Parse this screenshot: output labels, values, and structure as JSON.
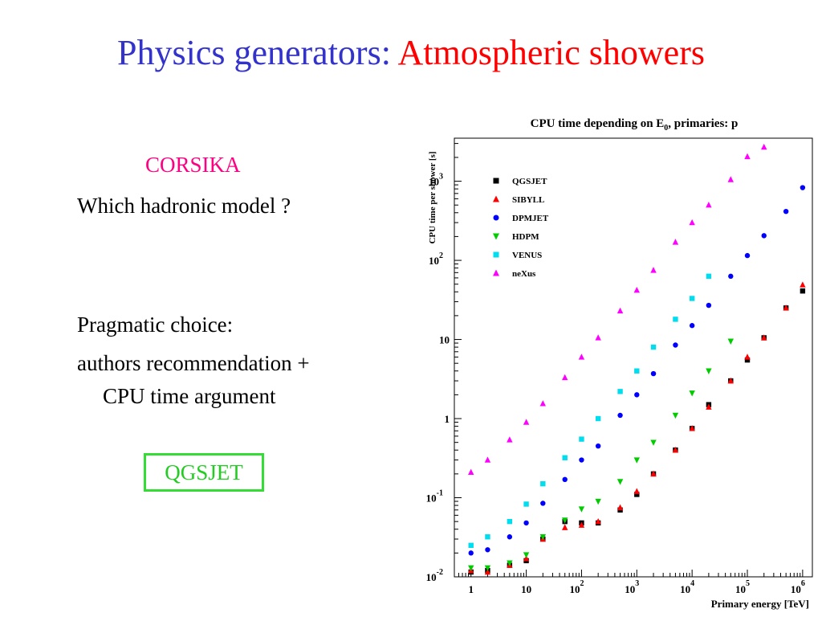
{
  "title": {
    "part1": "Physics generators:",
    "part2": "Atmospheric showers"
  },
  "left": {
    "corsika": "CORSIKA",
    "question": "Which hadronic model ?",
    "pragmatic": "Pragmatic choice:",
    "line1": "authors recommendation +",
    "line2": "CPU time argument",
    "choice": "QGSJET"
  },
  "colors": {
    "title_blue": "#3333cc",
    "title_red": "#ff0000",
    "corsika": "#ff0080",
    "choice_green": "#22cc22"
  },
  "chart_data": {
    "type": "scatter",
    "title": "CPU time depending on E0, primaries: p",
    "title_main": "CPU time depending on E",
    "title_sub": "0",
    "title_tail": ", primaries: p",
    "xlabel": "Primary energy [TeV]",
    "ylabel": "CPU time per shower [s]",
    "x_scale": "log",
    "y_scale": "log",
    "xlim": [
      0.5,
      1500000
    ],
    "ylim": [
      0.01,
      3500
    ],
    "x_ticks": [
      {
        "v": 1,
        "base": "1",
        "exp": ""
      },
      {
        "v": 10,
        "base": "10",
        "exp": ""
      },
      {
        "v": 100,
        "base": "10",
        "exp": "2"
      },
      {
        "v": 1000,
        "base": "10",
        "exp": "3"
      },
      {
        "v": 10000,
        "base": "10",
        "exp": "4"
      },
      {
        "v": 100000,
        "base": "10",
        "exp": "5"
      },
      {
        "v": 1000000,
        "base": "10",
        "exp": "6"
      }
    ],
    "y_ticks": [
      {
        "v": 0.01,
        "base": "10",
        "exp": "-2"
      },
      {
        "v": 0.1,
        "base": "10",
        "exp": "-1"
      },
      {
        "v": 1,
        "base": "1",
        "exp": ""
      },
      {
        "v": 10,
        "base": "10",
        "exp": ""
      },
      {
        "v": 100,
        "base": "10",
        "exp": "2"
      },
      {
        "v": 1000,
        "base": "10",
        "exp": "3"
      }
    ],
    "legend_position": "top-left",
    "x": [
      1,
      2,
      5,
      10,
      20,
      50,
      100,
      200,
      500,
      1000,
      2000,
      5000,
      10000,
      20000,
      50000,
      100000,
      200000,
      500000,
      1000000
    ],
    "series": [
      {
        "name": "QGSJET",
        "marker": "square",
        "color": "#000000",
        "values": [
          0.0115,
          0.012,
          0.014,
          0.016,
          0.03,
          0.05,
          0.048,
          0.048,
          0.07,
          0.11,
          0.2,
          0.4,
          0.75,
          1.5,
          3,
          5.5,
          10.5,
          25,
          41
        ]
      },
      {
        "name": "SIBYLL",
        "marker": "triangle-up",
        "color": "#ff0000",
        "values": [
          0.012,
          0.0115,
          0.014,
          0.017,
          0.03,
          0.042,
          0.045,
          0.05,
          0.075,
          0.12,
          0.2,
          0.4,
          0.75,
          1.4,
          3,
          6,
          10.5,
          25,
          49
        ]
      },
      {
        "name": "DPMJET",
        "marker": "circle",
        "color": "#0000ff",
        "values": [
          0.02,
          0.022,
          0.032,
          0.048,
          0.085,
          0.17,
          0.3,
          0.45,
          1.1,
          2,
          3.7,
          8.5,
          15,
          27,
          63,
          115,
          205,
          415,
          830
        ]
      },
      {
        "name": "HDPM",
        "marker": "triangle-down",
        "color": "#00cc00",
        "values": [
          0.013,
          0.013,
          0.015,
          0.019,
          0.032,
          0.052,
          0.072,
          0.09,
          0.16,
          0.3,
          0.5,
          1.1,
          2.1,
          4,
          9.5,
          null,
          null,
          null,
          null
        ]
      },
      {
        "name": "VENUS",
        "marker": "square",
        "color": "#00ddee",
        "values": [
          0.025,
          0.032,
          0.05,
          0.083,
          0.15,
          0.32,
          0.55,
          1,
          2.2,
          4,
          8,
          18,
          33,
          63,
          null,
          null,
          null,
          null,
          null
        ]
      },
      {
        "name": "neXus",
        "marker": "triangle-up",
        "color": "#ff00ff",
        "values": [
          0.21,
          0.3,
          0.54,
          0.9,
          1.55,
          3.3,
          6,
          10.5,
          23,
          42,
          75,
          170,
          300,
          500,
          1050,
          2050,
          2700,
          null,
          null
        ]
      }
    ]
  }
}
